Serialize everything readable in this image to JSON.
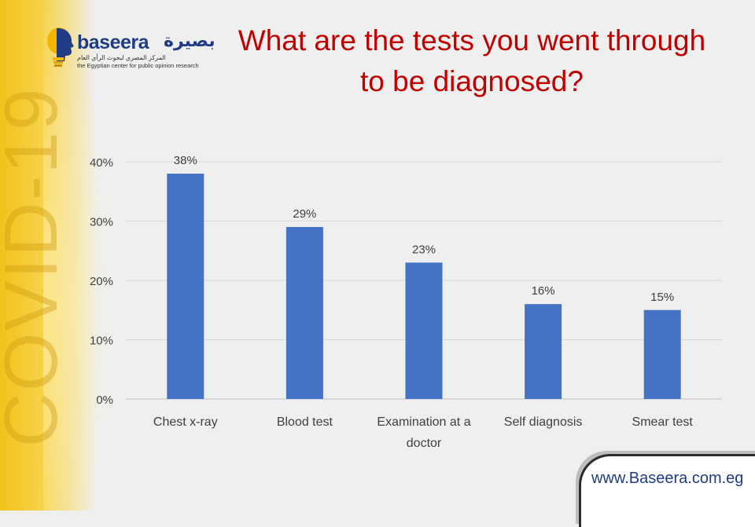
{
  "brand": {
    "name": "baseera",
    "arabic_name": "بصيرة",
    "arabic_tagline": "المركز المصري لبحوث الرأي العام",
    "tagline": "the Egyptian center for public opinion research",
    "watermark": "COVID-19"
  },
  "footer": {
    "url": "www.Baseera.com.eg"
  },
  "colors": {
    "bar": "#4472c4",
    "title": "#c00000",
    "brand": "#1f3c84"
  },
  "chart_data": {
    "type": "bar",
    "title": "What are the tests you went through to be diagnosed?",
    "title_lines": [
      "What are the tests you went through",
      "to be diagnosed?"
    ],
    "categories": [
      "Chest x-ray",
      "Blood test",
      "Examination at a doctor",
      "Self diagnosis",
      "Smear test"
    ],
    "category_lines": [
      [
        "Chest x-ray"
      ],
      [
        "Blood test"
      ],
      [
        "Examination at a",
        "doctor"
      ],
      [
        "Self diagnosis"
      ],
      [
        "Smear test"
      ]
    ],
    "values": [
      38,
      29,
      23,
      16,
      15
    ],
    "value_labels": [
      "38%",
      "29%",
      "23%",
      "16%",
      "15%"
    ],
    "ylim": [
      0,
      40
    ],
    "yticks": [
      0,
      10,
      20,
      30,
      40
    ],
    "ytick_labels": [
      "0%",
      "10%",
      "20%",
      "30%",
      "40%"
    ],
    "grid": true,
    "legend": "none",
    "xlabel": "",
    "ylabel": ""
  }
}
